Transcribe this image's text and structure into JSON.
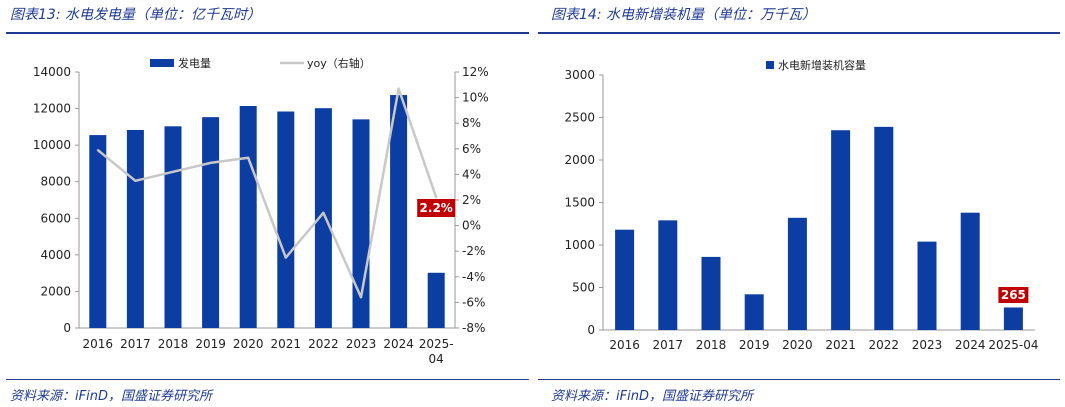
{
  "left_panel": {
    "title": "图表13:  水电发电量（单位：亿千瓦时）",
    "source": "资料来源：iFinD，国盛证券研究所"
  },
  "right_panel": {
    "title": "图表14:  水电新增装机量（单位：万千瓦）",
    "source": "资料来源：iFinD，国盛证券研究所"
  },
  "colors": {
    "bar": "#0b3da3",
    "line": "#c8c8c8",
    "callout": "#c00000",
    "rule": "#1f3a93"
  },
  "chart_data": [
    {
      "type": "bar",
      "categories": [
        "2016",
        "2017",
        "2018",
        "2019",
        "2020",
        "2021",
        "2022",
        "2023",
        "2024",
        "2025-04"
      ],
      "category_labels": [
        [
          "2016"
        ],
        [
          "2017"
        ],
        [
          "2018"
        ],
        [
          "2019"
        ],
        [
          "2020"
        ],
        [
          "2021"
        ],
        [
          "2022"
        ],
        [
          "2023"
        ],
        [
          "2024"
        ],
        [
          "2025-",
          "04"
        ]
      ],
      "series": [
        {
          "name": "发电量",
          "type": "bar",
          "axis": "left",
          "values": [
            10550,
            10830,
            11030,
            11530,
            12140,
            11840,
            12020,
            11410,
            12740,
            3020
          ]
        },
        {
          "name": "yoy（右轴）",
          "type": "line",
          "axis": "right",
          "values": [
            5.9,
            3.5,
            4.2,
            4.9,
            5.3,
            -2.5,
            1.0,
            -5.6,
            10.7,
            2.2
          ]
        }
      ],
      "ylim_left": [
        0,
        14000
      ],
      "yticks_left": [
        "0",
        "2000",
        "4000",
        "6000",
        "8000",
        "10000",
        "12000",
        "14000"
      ],
      "ylim_right": [
        -8,
        12
      ],
      "yticks_right": [
        "-8%",
        "-6%",
        "-4%",
        "-2%",
        "0%",
        "2%",
        "4%",
        "6%",
        "8%",
        "10%",
        "12%"
      ],
      "callout": "2.2%",
      "grid": false,
      "legend": "top"
    },
    {
      "type": "bar",
      "categories": [
        "2016",
        "2017",
        "2018",
        "2019",
        "2020",
        "2021",
        "2022",
        "2023",
        "2024",
        "2025-04"
      ],
      "category_labels": [
        [
          "2016"
        ],
        [
          "2017"
        ],
        [
          "2018"
        ],
        [
          "2019"
        ],
        [
          "2020"
        ],
        [
          "2021"
        ],
        [
          "2022"
        ],
        [
          "2023"
        ],
        [
          "2024"
        ],
        [
          "2025-04"
        ]
      ],
      "series": [
        {
          "name": "水电新增装机容量",
          "type": "bar",
          "values": [
            1180,
            1290,
            860,
            420,
            1320,
            2350,
            2390,
            1040,
            1380,
            265
          ]
        }
      ],
      "ylim": [
        0,
        3000
      ],
      "yticks": [
        "0",
        "500",
        "1000",
        "1500",
        "2000",
        "2500",
        "3000"
      ],
      "callout": "265",
      "grid": false,
      "legend": "top"
    }
  ]
}
